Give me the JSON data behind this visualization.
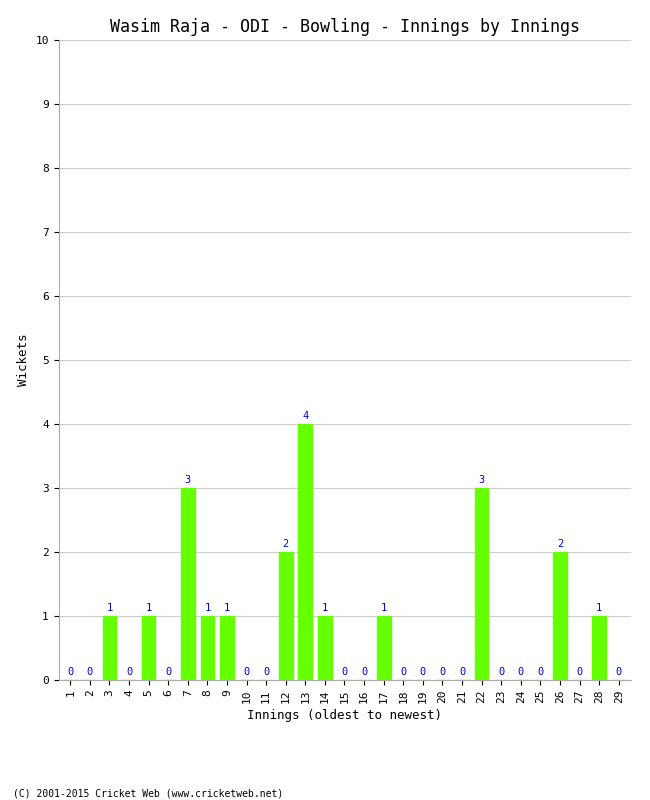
{
  "title": "Wasim Raja - ODI - Bowling - Innings by Innings",
  "xlabel": "Innings (oldest to newest)",
  "ylabel": "Wickets",
  "innings": [
    1,
    2,
    3,
    4,
    5,
    6,
    7,
    8,
    9,
    10,
    11,
    12,
    13,
    14,
    15,
    16,
    17,
    18,
    19,
    20,
    21,
    22,
    23,
    24,
    25,
    26,
    27,
    28,
    29
  ],
  "wickets": [
    0,
    0,
    1,
    0,
    1,
    0,
    3,
    1,
    1,
    0,
    0,
    2,
    4,
    1,
    0,
    0,
    1,
    0,
    0,
    0,
    0,
    3,
    0,
    0,
    0,
    2,
    0,
    1,
    0
  ],
  "bar_color": "#66ff00",
  "label_color": "#0000cc",
  "background_color": "#ffffff",
  "grid_color": "#cccccc",
  "ylim": [
    0,
    10
  ],
  "yticks": [
    0,
    1,
    2,
    3,
    4,
    5,
    6,
    7,
    8,
    9,
    10
  ],
  "copyright": "(C) 2001-2015 Cricket Web (www.cricketweb.net)",
  "title_fontsize": 12,
  "label_fontsize": 9,
  "tick_fontsize": 8,
  "value_label_fontsize": 7.5,
  "copyright_fontsize": 7
}
